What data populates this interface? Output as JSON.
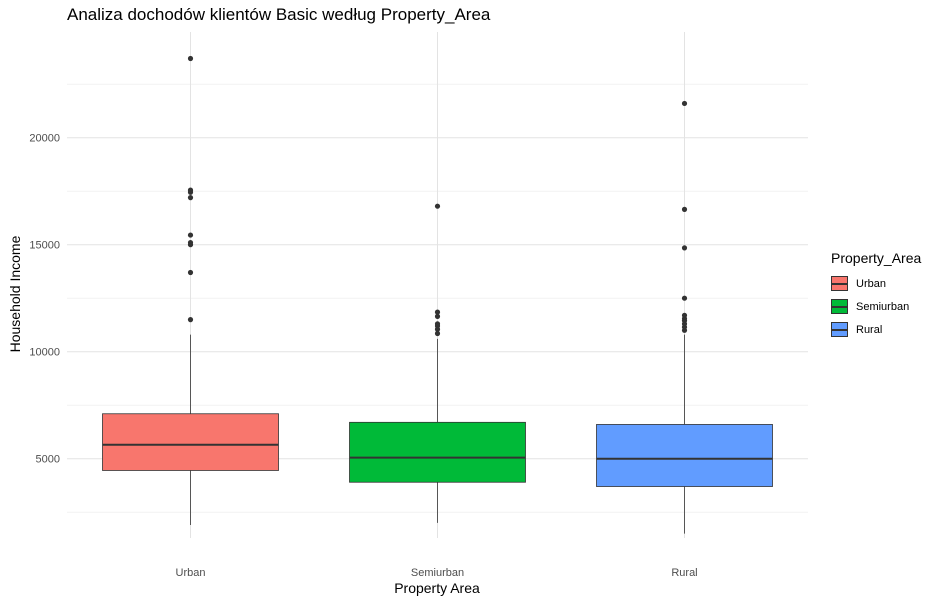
{
  "chart_data": {
    "type": "boxplot",
    "title": "Analiza dochodów klientów Basic według Property_Area",
    "xlabel": "Property Area",
    "ylabel": "Household Income",
    "categories": [
      "Urban",
      "Semiurban",
      "Rural"
    ],
    "ylim": [
      1000,
      24500
    ],
    "yticks": [
      5000,
      10000,
      15000,
      20000
    ],
    "grid": true,
    "legend": {
      "title": "Property_Area",
      "position": "right"
    },
    "series": [
      {
        "name": "Urban",
        "color": "#F8766D",
        "whisker_low": 1900,
        "q1": 4450,
        "median": 5650,
        "q3": 7100,
        "whisker_high": 10800,
        "outliers": [
          11500,
          13700,
          15000,
          15100,
          15450,
          17200,
          17450,
          17550,
          23700
        ]
      },
      {
        "name": "Semiurban",
        "color": "#00BA38",
        "whisker_low": 2000,
        "q1": 3900,
        "median": 5050,
        "q3": 6700,
        "whisker_high": 10600,
        "outliers": [
          10850,
          11050,
          11200,
          11300,
          11650,
          11850,
          16800
        ]
      },
      {
        "name": "Rural",
        "color": "#619CFF",
        "whisker_low": 1500,
        "q1": 3700,
        "median": 5000,
        "q3": 6600,
        "whisker_high": 10800,
        "outliers": [
          11000,
          11150,
          11300,
          11450,
          11550,
          11700,
          12500,
          14850,
          16650,
          21600
        ]
      }
    ]
  }
}
